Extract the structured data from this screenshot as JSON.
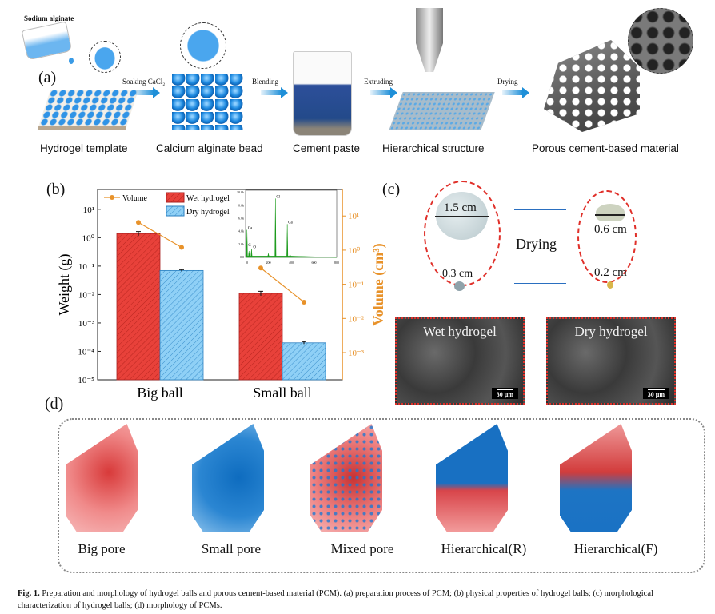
{
  "panel_a": {
    "label": "(a)",
    "source_label": "Sodium alginate",
    "steps": [
      "Hydrogel template",
      "Calcium alginate bead",
      "Cement paste",
      "Hierarchical structure",
      "Porous cement-based material"
    ],
    "processes": [
      "Soaking CaCl₂",
      "Blending",
      "Extruding",
      "Drying"
    ],
    "colors": {
      "hydrogel_blue": "#2a8fe0",
      "arrow": "#1e8fd8"
    }
  },
  "chart_data": {
    "type": "bar",
    "panel_label": "(b)",
    "categories": [
      "Big ball",
      "Small ball"
    ],
    "ylabel": "Weight (g)",
    "ylabel2": "Volume (cm³)",
    "yscale": "log",
    "ylim": [
      1e-05,
      50
    ],
    "y2lim": [
      0.00016,
      60
    ],
    "yticks": [
      "10⁻⁵",
      "10⁻⁴",
      "10⁻³",
      "10⁻²",
      "10⁻¹",
      "10⁰",
      "10¹"
    ],
    "y2ticks": [
      "10⁻³",
      "10⁻²",
      "10⁻¹",
      "10⁰",
      "10¹"
    ],
    "series": [
      {
        "name": "Wet hydrogel",
        "kind": "bar",
        "color": "#e8413a",
        "hatch": "diagonal",
        "values": [
          1.4,
          0.011
        ],
        "errors": [
          0.25,
          0.002
        ]
      },
      {
        "name": "Dry hydrogel",
        "kind": "bar",
        "color": "#5cb4ea",
        "hatch": "diagonal",
        "values": [
          0.07,
          0.0002
        ],
        "errors": [
          0.005,
          2e-05
        ]
      },
      {
        "name": "Volume",
        "kind": "line",
        "axis": "right",
        "color": "#e8922a",
        "points": [
          [
            "Big ball",
            "Wet hydrogel",
            6.5
          ],
          [
            "Big ball",
            "Dry hydrogel",
            1.2
          ],
          [
            "Small ball",
            "Wet hydrogel",
            0.3
          ],
          [
            "Small ball",
            "Dry hydrogel",
            0.03
          ]
        ]
      }
    ],
    "legend_placement": "top-left",
    "inset": {
      "type": "spectrum",
      "color": "#1a9a1a",
      "xticks": [
        "0",
        "200",
        "400",
        "600",
        "800"
      ],
      "yticks": [
        "0.0",
        "2.0k",
        "4.0k",
        "6.0k",
        "8.0k",
        "10.0k"
      ],
      "peak_labels": [
        "Ca",
        "C",
        "O",
        "Cl",
        "Ca"
      ]
    }
  },
  "panel_c": {
    "label": "(c)",
    "process": "Drying",
    "wet_big": "1.5 cm",
    "wet_small": "0.3 cm",
    "dry_big": "0.6 cm",
    "dry_small": "0.2 cm",
    "sem_wet": "Wet hydrogel",
    "sem_dry": "Dry hydrogel",
    "scale_bar": "30 μm"
  },
  "panel_d": {
    "label": "(d)",
    "items": [
      "Big pore",
      "Small pore",
      "Mixed pore",
      "Hierarchical(R)",
      "Hierarchical(F)"
    ],
    "colors": {
      "big_pore": "#e0393a",
      "small_pore": "#1a78c8"
    }
  },
  "caption": {
    "prefix": "Fig. 1.",
    "text": " Preparation and morphology of hydrogel balls and porous cement-based material (PCM). (a) preparation process of PCM; (b) physical properties of hydrogel balls; (c) morphological characterization of hydrogel balls; (d) morphology of PCMs."
  }
}
